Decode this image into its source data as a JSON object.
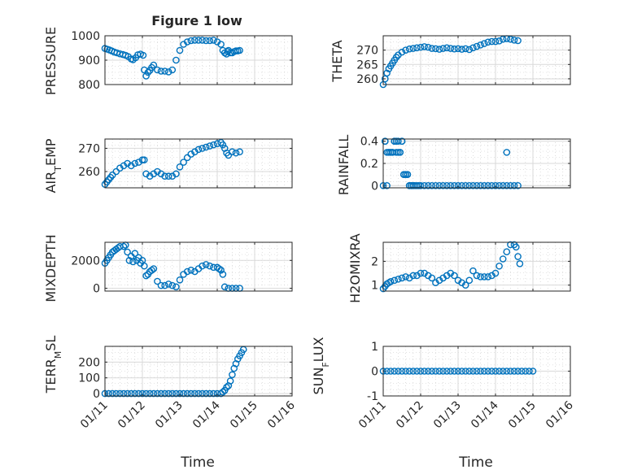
{
  "figure": {
    "title": "Figure 1 low"
  },
  "colors": {
    "marker": "#0072BD",
    "axes": "#262626",
    "grid": "#d9d9d9",
    "background": "#ffffff"
  },
  "chart_data": [
    {
      "type": "scatter",
      "ylabel": "PRESSURE",
      "title": "Figure 1 low",
      "ylim": [
        800,
        1000
      ],
      "yticks": [
        800,
        900,
        1000
      ],
      "ytick_labels": [
        "800",
        "900",
        "1000"
      ],
      "xticks": [
        "01/11",
        "01/12",
        "01/13",
        "01/14",
        "01/15",
        "01/16"
      ],
      "grid": true,
      "x": [
        0.0,
        0.06,
        0.12,
        0.18,
        0.25,
        0.32,
        0.4,
        0.48,
        0.55,
        0.62,
        0.7,
        0.75,
        0.82,
        0.88,
        0.95,
        1.02,
        1.05,
        1.1,
        1.15,
        1.2,
        1.25,
        1.3,
        1.4,
        1.5,
        1.6,
        1.7,
        1.8,
        1.9,
        2.0,
        2.1,
        2.2,
        2.3,
        2.4,
        2.5,
        2.6,
        2.7,
        2.8,
        2.9,
        3.0,
        3.1,
        3.15,
        3.2,
        3.25,
        3.28,
        3.3,
        3.35,
        3.4,
        3.45,
        3.5,
        3.55,
        3.6
      ],
      "y": [
        948,
        945,
        942,
        938,
        933,
        930,
        926,
        923,
        920,
        915,
        905,
        902,
        910,
        922,
        925,
        920,
        860,
        835,
        850,
        858,
        870,
        880,
        860,
        855,
        855,
        852,
        860,
        900,
        940,
        965,
        975,
        980,
        982,
        982,
        982,
        980,
        980,
        982,
        975,
        965,
        940,
        930,
        925,
        935,
        940,
        930,
        930,
        935,
        938,
        938,
        940
      ]
    },
    {
      "type": "scatter",
      "ylabel": "THETA",
      "ylim": [
        258,
        275
      ],
      "yticks": [
        260,
        265,
        270
      ],
      "ytick_labels": [
        "260",
        "265",
        "270"
      ],
      "xticks": [
        "01/11",
        "01/12",
        "01/13",
        "01/14",
        "01/15",
        "01/16"
      ],
      "grid": true,
      "x": [
        0.0,
        0.05,
        0.1,
        0.15,
        0.2,
        0.25,
        0.3,
        0.35,
        0.4,
        0.5,
        0.6,
        0.7,
        0.8,
        0.9,
        1.0,
        1.1,
        1.2,
        1.3,
        1.4,
        1.5,
        1.6,
        1.7,
        1.8,
        1.9,
        2.0,
        2.1,
        2.2,
        2.3,
        2.4,
        2.5,
        2.6,
        2.7,
        2.8,
        2.9,
        3.0,
        3.1,
        3.2,
        3.3,
        3.4,
        3.5,
        3.6
      ],
      "y": [
        258,
        260,
        262,
        263.5,
        264.5,
        265.5,
        266.5,
        267.5,
        268.3,
        269.3,
        270,
        270.4,
        270.6,
        270.8,
        271,
        271.2,
        271,
        270.6,
        270.5,
        270.3,
        270.6,
        270.8,
        270.6,
        270.4,
        270.5,
        270.3,
        270.5,
        270.2,
        270.8,
        271.3,
        271.8,
        272.3,
        272.8,
        273,
        273,
        273.2,
        273.8,
        274,
        273.8,
        273.5,
        273.3
      ]
    },
    {
      "type": "scatter",
      "ylabel": "AIR_TEMP",
      "ylim": [
        253,
        274
      ],
      "yticks": [
        260,
        270
      ],
      "ytick_labels": [
        "260",
        "270"
      ],
      "xticks": [
        "01/11",
        "01/12",
        "01/13",
        "01/14",
        "01/15",
        "01/16"
      ],
      "grid": true,
      "x": [
        0.0,
        0.05,
        0.1,
        0.15,
        0.2,
        0.3,
        0.4,
        0.5,
        0.6,
        0.7,
        0.8,
        0.9,
        1.0,
        1.05,
        1.1,
        1.2,
        1.3,
        1.4,
        1.5,
        1.6,
        1.7,
        1.8,
        1.9,
        2.0,
        2.1,
        2.2,
        2.3,
        2.4,
        2.5,
        2.6,
        2.7,
        2.8,
        2.9,
        3.0,
        3.1,
        3.15,
        3.2,
        3.25,
        3.3,
        3.4,
        3.5,
        3.6
      ],
      "y": [
        254.5,
        255.5,
        256.5,
        257.5,
        258.5,
        260,
        261.5,
        262.5,
        263.5,
        262.5,
        263.5,
        264,
        265,
        265,
        259,
        258,
        259,
        260,
        259,
        258,
        258,
        258,
        259,
        262,
        264,
        266,
        267.5,
        268.5,
        269.5,
        270,
        270.5,
        271,
        271.5,
        272,
        272.5,
        271.5,
        270,
        268,
        267,
        268.5,
        268,
        268.5
      ]
    },
    {
      "type": "scatter",
      "ylabel": "RAINFALL",
      "ylim": [
        -0.02,
        0.42
      ],
      "yticks": [
        0,
        0.2,
        0.4
      ],
      "ytick_labels": [
        "0",
        "0.2",
        "0.4"
      ],
      "xticks": [
        "01/11",
        "01/12",
        "01/13",
        "01/14",
        "01/15",
        "01/16"
      ],
      "grid": true,
      "x": [
        0.0,
        0.05,
        0.1,
        0.15,
        0.2,
        0.25,
        0.3,
        0.35,
        0.4,
        0.45,
        0.5,
        0.55,
        0.6,
        0.65,
        0.7,
        0.75,
        0.8,
        0.85,
        0.9,
        0.95,
        1.0,
        1.1,
        1.2,
        1.3,
        1.4,
        1.5,
        1.6,
        1.7,
        1.8,
        1.9,
        2.0,
        2.1,
        2.2,
        2.3,
        2.4,
        2.5,
        2.6,
        2.7,
        2.8,
        2.9,
        3.0,
        3.1,
        3.2,
        3.3,
        3.4,
        3.5,
        3.6,
        0.05,
        0.1,
        0.15,
        0.2,
        0.25,
        0.3,
        0.35,
        0.4,
        0.45,
        0.5,
        0.55,
        0.6,
        0.65,
        0.7,
        0.75,
        0.8,
        3.3
      ],
      "y": [
        0,
        0.4,
        0,
        0.3,
        0.3,
        0.3,
        0.4,
        0.3,
        0.4,
        0.3,
        0.4,
        0.1,
        0.1,
        0.1,
        0,
        0,
        0,
        0,
        0,
        0,
        0,
        0,
        0,
        0,
        0,
        0,
        0,
        0,
        0,
        0,
        0,
        0,
        0,
        0,
        0,
        0,
        0,
        0,
        0,
        0,
        0,
        0,
        0,
        0,
        0,
        0,
        0,
        0.4,
        0.3,
        0.3,
        0.3,
        0.3,
        0.4,
        0.4,
        0.3,
        0.3,
        0.4,
        0.1,
        0.1,
        0.1,
        0,
        0,
        0,
        0.3
      ]
    },
    {
      "type": "scatter",
      "ylabel": "MIXDEPTH",
      "ylim": [
        -200,
        3300
      ],
      "yticks": [
        0,
        2000
      ],
      "ytick_labels": [
        "0",
        "2000"
      ],
      "xticks": [
        "01/11",
        "01/12",
        "01/13",
        "01/14",
        "01/15",
        "01/16"
      ],
      "grid": true,
      "x": [
        0.0,
        0.05,
        0.1,
        0.15,
        0.2,
        0.25,
        0.3,
        0.35,
        0.4,
        0.5,
        0.55,
        0.6,
        0.65,
        0.7,
        0.75,
        0.8,
        0.85,
        0.9,
        0.95,
        1.0,
        1.05,
        1.1,
        1.15,
        1.2,
        1.25,
        1.3,
        1.4,
        1.5,
        1.6,
        1.7,
        1.8,
        1.9,
        2.0,
        2.1,
        2.2,
        2.3,
        2.4,
        2.5,
        2.6,
        2.7,
        2.8,
        2.9,
        3.0,
        3.05,
        3.1,
        3.15,
        3.2,
        3.3,
        3.4,
        3.5,
        3.6
      ],
      "y": [
        1800,
        2000,
        2200,
        2400,
        2600,
        2700,
        2800,
        2900,
        3000,
        3000,
        3100,
        2600,
        2000,
        2300,
        1900,
        2500,
        2000,
        2200,
        1800,
        2000,
        1600,
        900,
        1000,
        1200,
        1300,
        1400,
        500,
        200,
        200,
        300,
        200,
        100,
        600,
        1000,
        1200,
        1300,
        1200,
        1400,
        1600,
        1700,
        1600,
        1500,
        1500,
        1400,
        1300,
        1000,
        100,
        0,
        0,
        0,
        0
      ]
    },
    {
      "type": "scatter",
      "ylabel": "H2OMIXRA",
      "ylim": [
        0.75,
        2.8
      ],
      "yticks": [
        1,
        2
      ],
      "ytick_labels": [
        "1",
        "2"
      ],
      "xticks": [
        "01/11",
        "01/12",
        "01/13",
        "01/14",
        "01/15",
        "01/16"
      ],
      "grid": true,
      "x": [
        0.0,
        0.05,
        0.1,
        0.15,
        0.2,
        0.3,
        0.4,
        0.5,
        0.6,
        0.7,
        0.8,
        0.9,
        1.0,
        1.1,
        1.2,
        1.3,
        1.4,
        1.5,
        1.6,
        1.7,
        1.8,
        1.9,
        2.0,
        2.1,
        2.2,
        2.3,
        2.4,
        2.5,
        2.6,
        2.7,
        2.8,
        2.9,
        3.0,
        3.1,
        3.2,
        3.3,
        3.4,
        3.5,
        3.55,
        3.6,
        3.65
      ],
      "y": [
        0.85,
        0.95,
        1.05,
        1.1,
        1.15,
        1.2,
        1.25,
        1.3,
        1.35,
        1.3,
        1.4,
        1.4,
        1.5,
        1.5,
        1.4,
        1.3,
        1.1,
        1.2,
        1.3,
        1.4,
        1.5,
        1.4,
        1.2,
        1.1,
        1.0,
        1.2,
        1.6,
        1.4,
        1.35,
        1.35,
        1.35,
        1.4,
        1.5,
        1.8,
        2.1,
        2.4,
        2.7,
        2.7,
        2.6,
        2.2,
        1.9
      ]
    },
    {
      "type": "scatter",
      "ylabel": "TERR_MSL",
      "ylim": [
        -15,
        300
      ],
      "yticks": [
        0,
        100,
        200
      ],
      "ytick_labels": [
        "0",
        "100",
        "200"
      ],
      "xticks": [
        "01/11",
        "01/12",
        "01/13",
        "01/14",
        "01/15",
        "01/16"
      ],
      "grid": true,
      "x": [
        0.0,
        0.1,
        0.2,
        0.3,
        0.4,
        0.5,
        0.6,
        0.7,
        0.8,
        0.9,
        1.0,
        1.1,
        1.2,
        1.3,
        1.4,
        1.5,
        1.6,
        1.7,
        1.8,
        1.9,
        2.0,
        2.1,
        2.2,
        2.3,
        2.4,
        2.5,
        2.6,
        2.7,
        2.8,
        2.9,
        3.0,
        3.1,
        3.15,
        3.2,
        3.25,
        3.3,
        3.35,
        3.4,
        3.45,
        3.5,
        3.55,
        3.6,
        3.65,
        3.7
      ],
      "y": [
        0,
        0,
        0,
        0,
        0,
        0,
        0,
        0,
        0,
        0,
        0,
        0,
        0,
        0,
        0,
        0,
        0,
        0,
        0,
        0,
        0,
        0,
        0,
        0,
        0,
        0,
        0,
        0,
        0,
        0,
        0,
        0,
        10,
        20,
        40,
        50,
        80,
        120,
        160,
        190,
        220,
        240,
        260,
        280
      ]
    },
    {
      "type": "scatter",
      "ylabel": "SUN_FLUX",
      "ylim": [
        -1,
        1
      ],
      "yticks": [
        -1,
        0,
        1
      ],
      "ytick_labels": [
        "-1",
        "0",
        "1"
      ],
      "xticks": [
        "01/11",
        "01/12",
        "01/13",
        "01/14",
        "01/15",
        "01/16"
      ],
      "grid": true,
      "x": [
        0.0,
        0.1,
        0.2,
        0.3,
        0.4,
        0.5,
        0.6,
        0.7,
        0.8,
        0.9,
        1.0,
        1.1,
        1.2,
        1.3,
        1.4,
        1.5,
        1.6,
        1.7,
        1.8,
        1.9,
        2.0,
        2.1,
        2.2,
        2.3,
        2.4,
        2.5,
        2.6,
        2.7,
        2.8,
        2.9,
        3.0,
        3.1,
        3.2,
        3.3,
        3.4,
        3.5,
        3.6,
        3.7,
        3.8,
        3.9,
        4.0
      ],
      "y": [
        0,
        0,
        0,
        0,
        0,
        0,
        0,
        0,
        0,
        0,
        0,
        0,
        0,
        0,
        0,
        0,
        0,
        0,
        0,
        0,
        0,
        0,
        0,
        0,
        0,
        0,
        0,
        0,
        0,
        0,
        0,
        0,
        0,
        0,
        0,
        0,
        0,
        0,
        0,
        0,
        0
      ]
    }
  ],
  "axes": {
    "xlabel": "Time",
    "xtick_labels": [
      "01/11",
      "01/12",
      "01/13",
      "01/14",
      "01/15",
      "01/16"
    ],
    "ylabels": {
      "pressure": "PRESSURE",
      "theta": "THETA",
      "air_temp": {
        "main": "AIR",
        "sub": "T",
        "rest": "EMP"
      },
      "rainfall": "RAINFALL",
      "mixdepth": "MIXDEPTH",
      "h2omixra": "H2OMIXRA",
      "terr_msl": {
        "main": "TERR",
        "sub": "M",
        "rest": "SL"
      },
      "sun_flux": {
        "main": "SUN",
        "sub": "F",
        "rest": "LUX"
      }
    }
  }
}
